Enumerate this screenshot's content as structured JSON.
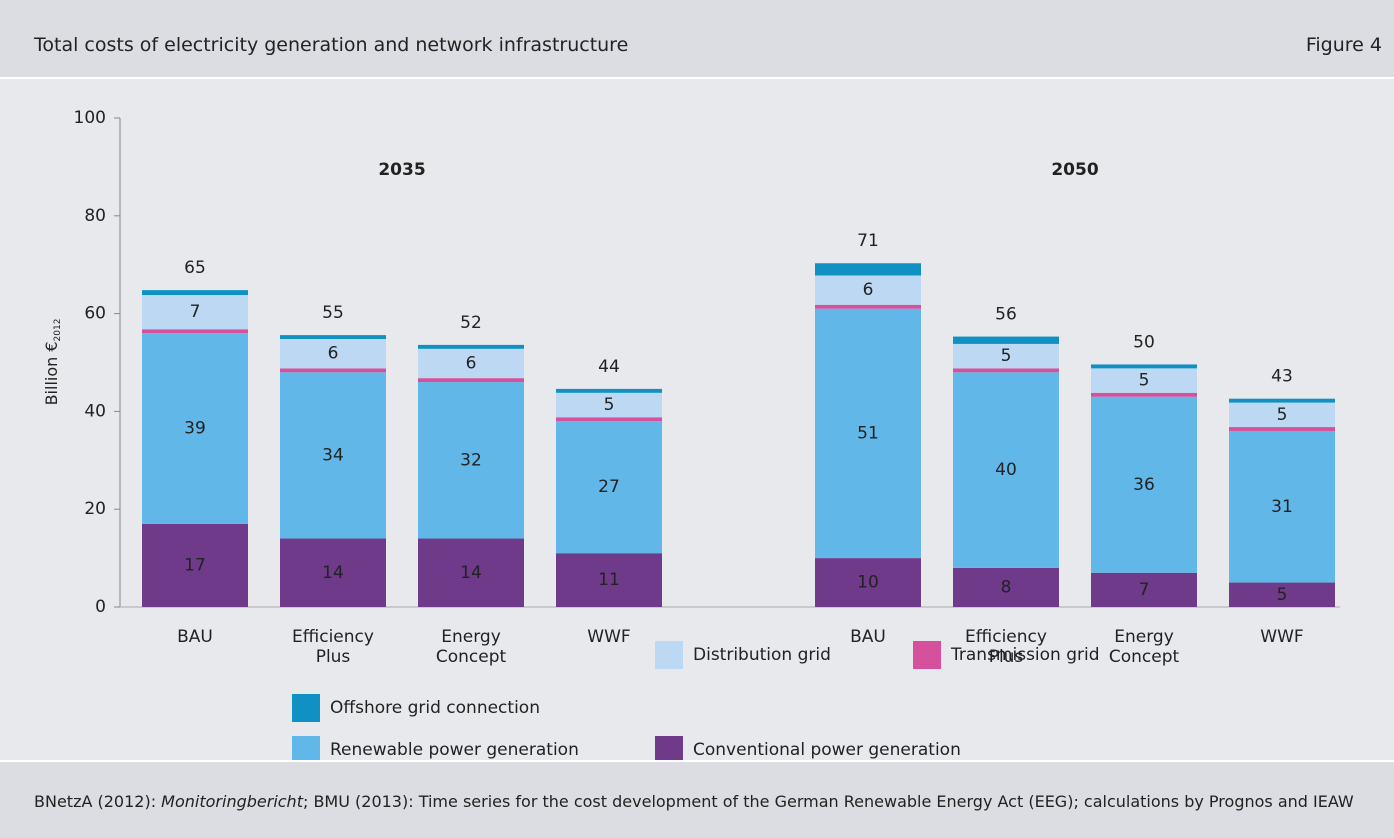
{
  "header": {
    "title": "Total costs of electricity generation and network infrastructure",
    "figure": "Figure 4"
  },
  "chart_data": {
    "type": "stacked_bar",
    "ylabel": "Billion €",
    "ylabel_sub": "2012",
    "group_labels": [
      "2035",
      "2050"
    ],
    "categories": [
      "BAU",
      "Efficiency Plus",
      "Energy Concept",
      "WWF",
      "BAU",
      "Efficiency Plus",
      "Energy Concept",
      "WWF"
    ],
    "series": [
      {
        "name": "Conventional power generation",
        "color": "#6f3a8a",
        "show_labels": true,
        "values": [
          17,
          14,
          14,
          11,
          10,
          8,
          7,
          5
        ]
      },
      {
        "name": "Renewable power generation",
        "color": "#61b7e8",
        "show_labels": true,
        "values": [
          39,
          34,
          32,
          27,
          51,
          40,
          36,
          31
        ]
      },
      {
        "name": "Transmission grid",
        "color": "#d6519b",
        "show_labels": false,
        "values": [
          0.8,
          0.8,
          0.8,
          0.8,
          0.8,
          0.8,
          0.8,
          0.8
        ]
      },
      {
        "name": "Distribution grid",
        "color": "#bcd8f2",
        "show_labels": true,
        "values": [
          7,
          6,
          6,
          5,
          6,
          5,
          5,
          5
        ]
      },
      {
        "name": "Offshore grid connection",
        "color": "#1091c4",
        "show_labels": false,
        "values": [
          1,
          0.8,
          0.8,
          0.8,
          2.5,
          1.5,
          0.8,
          0.8
        ]
      }
    ],
    "totals": [
      65,
      55,
      52,
      44,
      71,
      56,
      50,
      43
    ],
    "ylim": [
      0,
      100
    ],
    "yticks": [
      0,
      20,
      40,
      60,
      80,
      100
    ],
    "grid": false
  },
  "footer": {
    "source": [
      "BNetzA (2012): ",
      "Monitoringbericht",
      "; BMU (2013): Time series for the cost development of the German Renewable Energy Act (EEG); calculations by Prognos and IEAW"
    ]
  }
}
